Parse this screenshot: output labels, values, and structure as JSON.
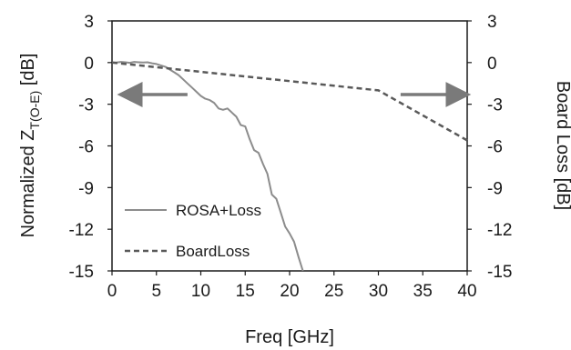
{
  "chart_data": {
    "type": "line",
    "xlabel": "Freq [GHz]",
    "ylabel_left": "Normalized Z",
    "ylabel_left_subscript": "T(O-E)",
    "ylabel_left_unit": " [dB]",
    "ylabel_right": "Board Loss [dB]",
    "xlim": [
      0,
      40
    ],
    "ylim_left": [
      -15,
      3
    ],
    "ylim_right": [
      -15,
      3
    ],
    "x_ticks": [
      "0",
      "5",
      "10",
      "15",
      "20",
      "25",
      "30",
      "35",
      "40"
    ],
    "y_ticks_left": [
      "3",
      "0",
      "-3",
      "-6",
      "-9",
      "-12",
      "-15"
    ],
    "y_ticks_right": [
      "3",
      "0",
      "-3",
      "-6",
      "-9",
      "-12",
      "-15"
    ],
    "grid": false,
    "legend_position": "bottom-left",
    "series": [
      {
        "name": "ROSA+Loss",
        "axis": "left",
        "style": "solid",
        "color": "#8c8c8c",
        "x": [
          0,
          0.5,
          1,
          1.5,
          2,
          2.5,
          3,
          3.5,
          4,
          4.5,
          5,
          5.5,
          6,
          6.5,
          7,
          7.5,
          8,
          8.5,
          9,
          9.5,
          10,
          10.5,
          11,
          11.5,
          12,
          12.5,
          13,
          13.5,
          14,
          14.5,
          15,
          15.5,
          16,
          16.5,
          17,
          17.5,
          18,
          18.5,
          19,
          19.5,
          20,
          20.5,
          21,
          21.5
        ],
        "y": [
          0,
          0,
          0.05,
          0.02,
          -0.02,
          0.05,
          0.02,
          0,
          0.02,
          -0.05,
          -0.1,
          -0.2,
          -0.3,
          -0.5,
          -0.7,
          -0.9,
          -1.2,
          -1.5,
          -1.8,
          -2.1,
          -2.4,
          -2.6,
          -2.7,
          -2.9,
          -3.3,
          -3.4,
          -3.3,
          -3.6,
          -3.9,
          -4.5,
          -4.6,
          -5.5,
          -6.3,
          -6.5,
          -7.3,
          -8.0,
          -9.5,
          -9.8,
          -10.8,
          -11.8,
          -12.3,
          -12.9,
          -14.0,
          -15.0
        ]
      },
      {
        "name": "BoardLoss",
        "axis": "right",
        "style": "dashed",
        "color": "#595959",
        "x": [
          0,
          30,
          40
        ],
        "y": [
          0,
          -2,
          -5.6
        ]
      }
    ],
    "annotations": [
      {
        "type": "arrow",
        "direction": "left",
        "meaning": "left axis",
        "x_from": 8.5,
        "x_to": 2.0,
        "y": -2.3
      },
      {
        "type": "arrow",
        "direction": "right",
        "meaning": "right axis",
        "x_from": 32.5,
        "x_to": 39.0,
        "y": -2.3
      }
    ]
  }
}
